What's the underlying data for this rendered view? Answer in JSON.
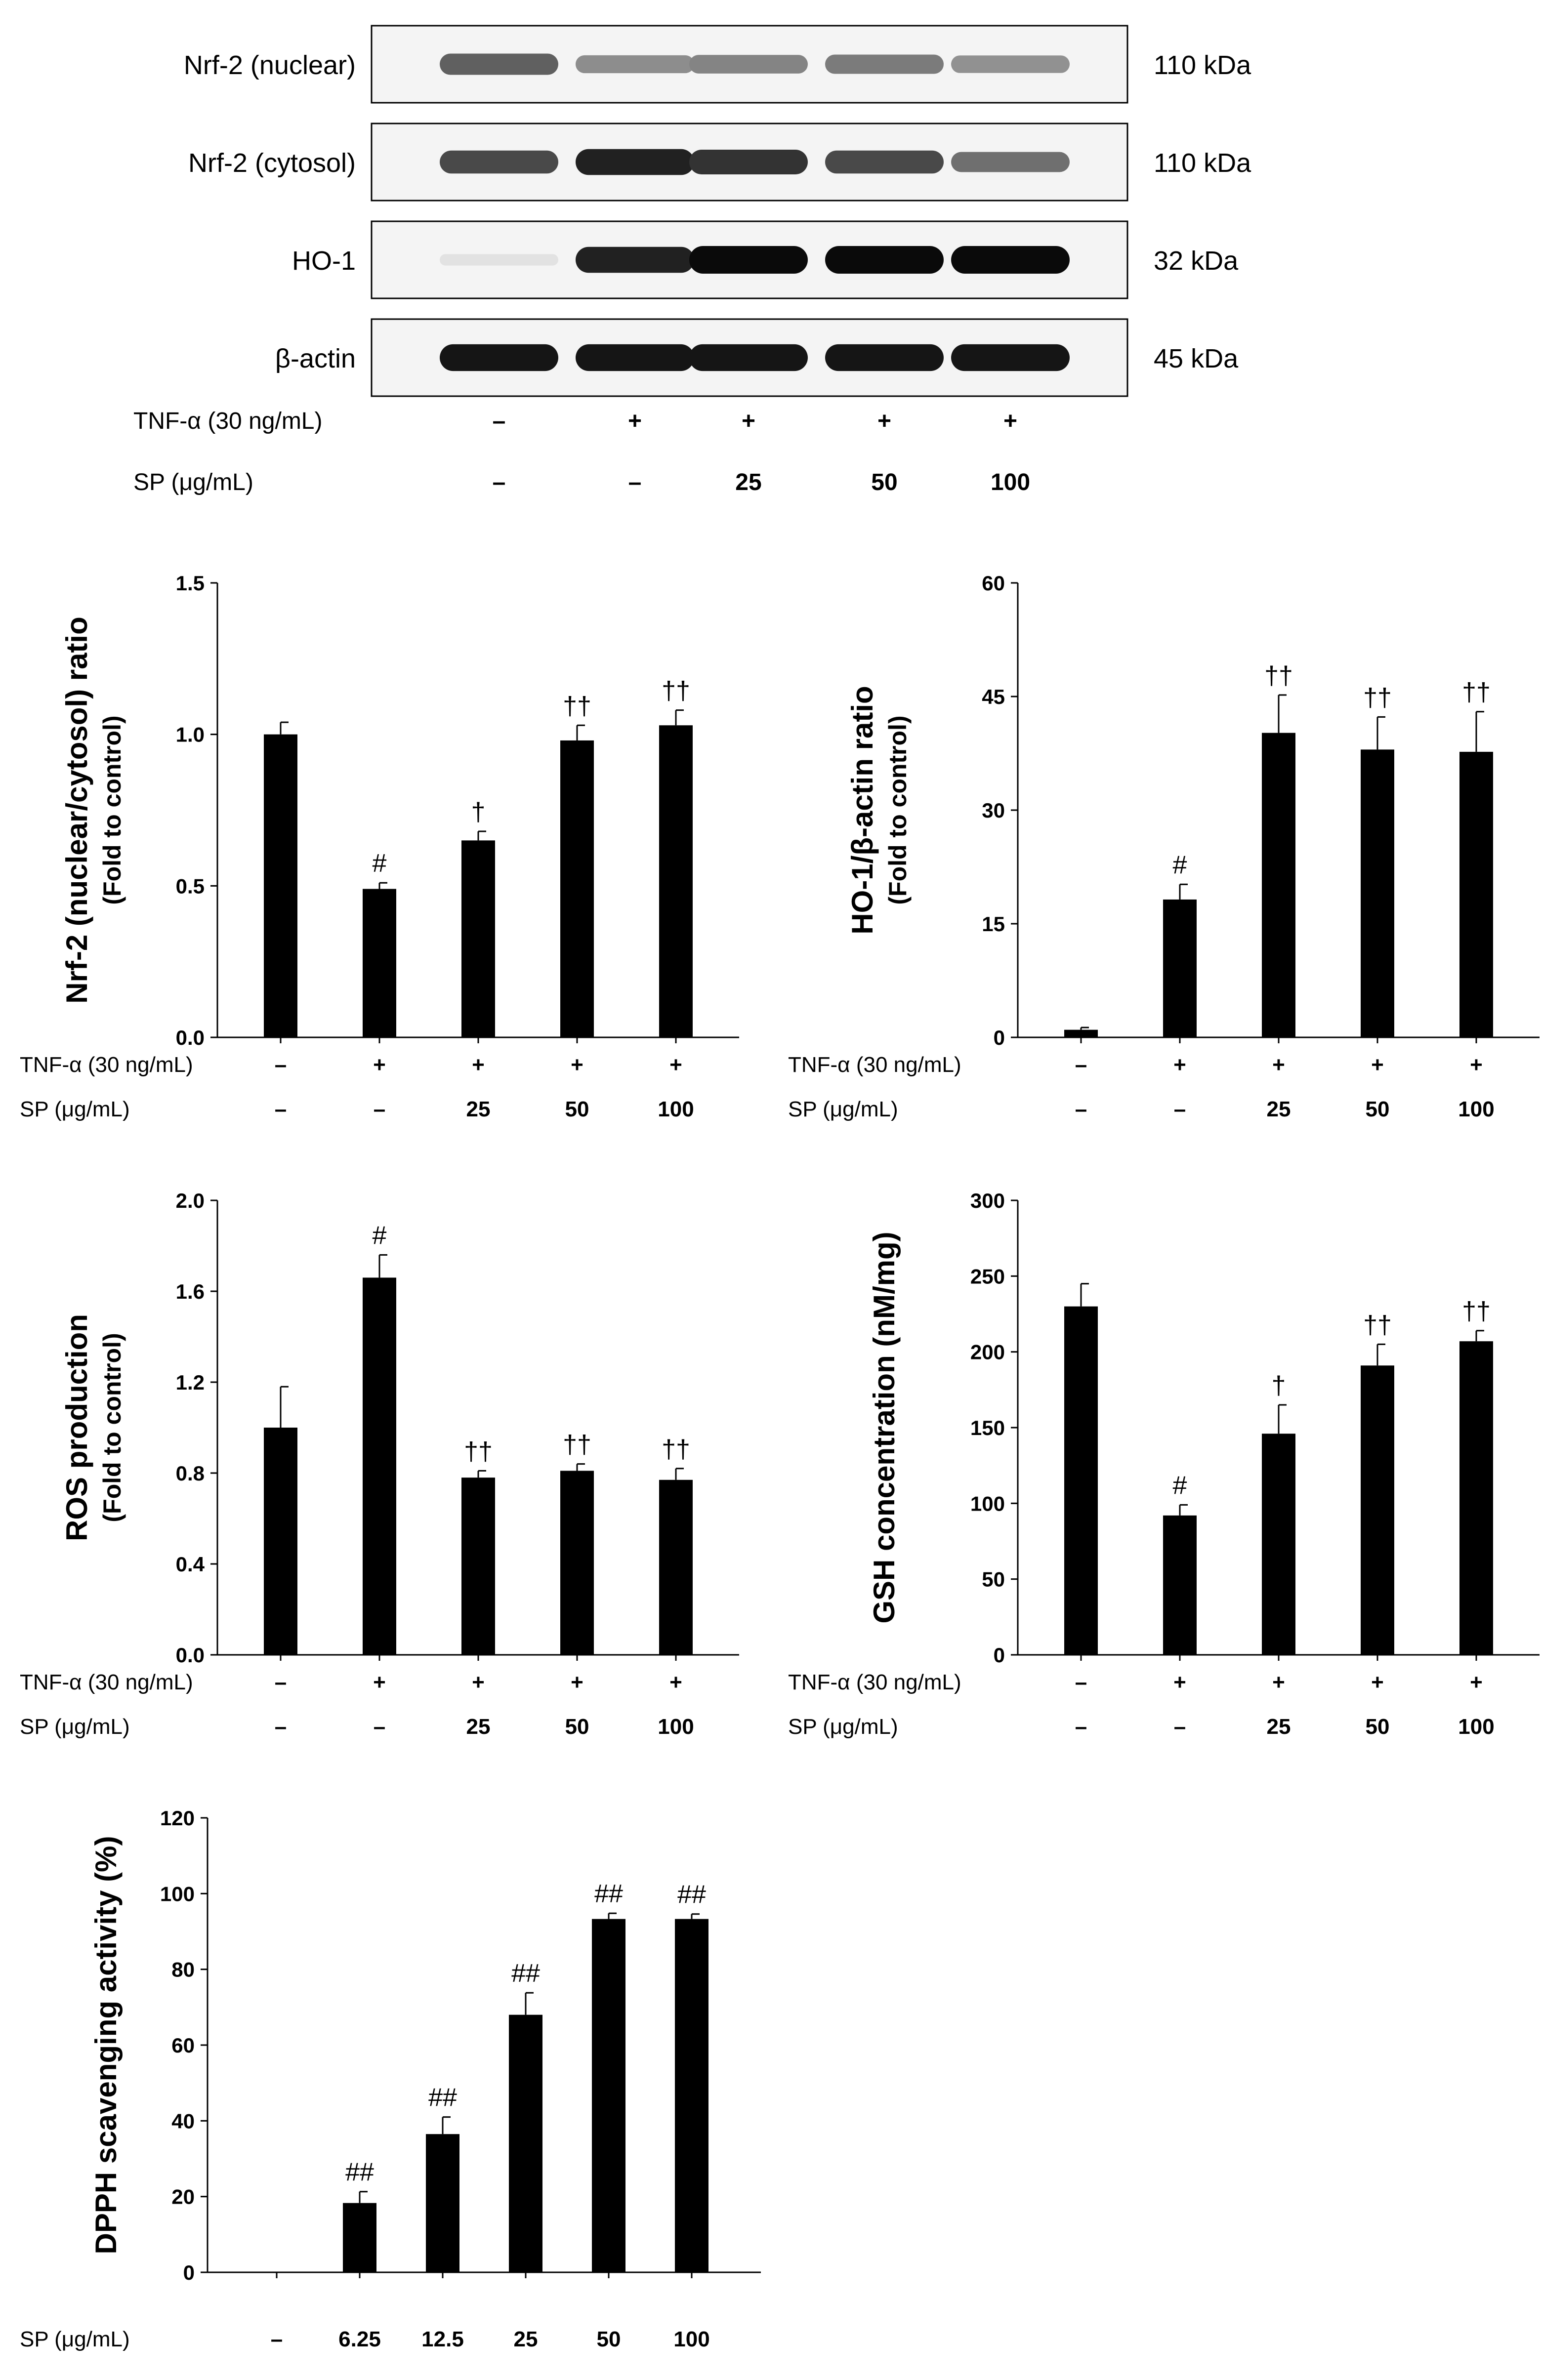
{
  "western_blot": {
    "bands": [
      {
        "label": "Nrf-2 (nuclear)",
        "size": "110 kDa",
        "intensities": [
          0.62,
          0.42,
          0.46,
          0.5,
          0.4
        ]
      },
      {
        "label": "Nrf-2 (cytosol)",
        "size": "110 kDa",
        "intensities": [
          0.72,
          0.9,
          0.82,
          0.72,
          0.55
        ]
      },
      {
        "label": "HO-1",
        "size": "32 kDa",
        "intensities": [
          0.04,
          0.9,
          1.0,
          1.0,
          1.0
        ]
      },
      {
        "label": "β-actin",
        "size": "45 kDa",
        "intensities": [
          0.95,
          0.95,
          0.95,
          0.95,
          0.95
        ]
      }
    ],
    "treatment_rows": [
      {
        "label": "TNF-α (30 ng/mL)",
        "values": [
          "–",
          "+",
          "+",
          "+",
          "+"
        ]
      },
      {
        "label": "SP (μg/mL)",
        "values": [
          "–",
          "–",
          "25",
          "50",
          "100"
        ]
      }
    ]
  },
  "chart_data": [
    {
      "type": "bar",
      "ylabel": "Nrf-2 (nuclear/cytosol) ratio",
      "ylabel2": "(Fold to control)",
      "ylim": [
        0,
        1.5
      ],
      "yticks": [
        "0.0",
        "0.5",
        "1.0",
        "1.5"
      ],
      "values": [
        1.0,
        0.49,
        0.65,
        0.98,
        1.03
      ],
      "errors": [
        0.04,
        0.02,
        0.03,
        0.05,
        0.05
      ],
      "annotations": [
        "",
        "#",
        "†",
        "††",
        "††"
      ],
      "rows": [
        {
          "label": "TNF-α (30 ng/mL)",
          "values": [
            "–",
            "+",
            "+",
            "+",
            "+"
          ]
        },
        {
          "label": "SP (μg/mL)",
          "values": [
            "–",
            "–",
            "25",
            "50",
            "100"
          ]
        }
      ]
    },
    {
      "type": "bar",
      "ylabel": "HO-1/β-actin ratio",
      "ylabel2": "(Fold to control)",
      "ylim": [
        0,
        60
      ],
      "yticks": [
        "0",
        "15",
        "30",
        "45",
        "60"
      ],
      "values": [
        1.0,
        18.2,
        40.2,
        38.0,
        37.7
      ],
      "errors": [
        0.3,
        2.0,
        5.0,
        4.3,
        5.3
      ],
      "annotations": [
        "",
        "#",
        "††",
        "††",
        "††"
      ],
      "rows": [
        {
          "label": "TNF-α (30 ng/mL)",
          "values": [
            "–",
            "+",
            "+",
            "+",
            "+"
          ]
        },
        {
          "label": "SP (μg/mL)",
          "values": [
            "–",
            "–",
            "25",
            "50",
            "100"
          ]
        }
      ]
    },
    {
      "type": "bar",
      "ylabel": "ROS production",
      "ylabel2": "(Fold to control)",
      "ylim": [
        0,
        2.0
      ],
      "yticks": [
        "0.0",
        "0.4",
        "0.8",
        "1.2",
        "1.6",
        "2.0"
      ],
      "values": [
        1.0,
        1.66,
        0.78,
        0.81,
        0.77
      ],
      "errors": [
        0.18,
        0.1,
        0.03,
        0.03,
        0.05
      ],
      "annotations": [
        "",
        "#",
        "††",
        "††",
        "††"
      ],
      "rows": [
        {
          "label": "TNF-α (30 ng/mL)",
          "values": [
            "–",
            "+",
            "+",
            "+",
            "+"
          ]
        },
        {
          "label": "SP (μg/mL)",
          "values": [
            "–",
            "–",
            "25",
            "50",
            "100"
          ]
        }
      ]
    },
    {
      "type": "bar",
      "ylabel": "GSH concentration (nM/mg)",
      "ylabel2": "",
      "ylim": [
        0,
        300
      ],
      "yticks": [
        "0",
        "50",
        "100",
        "150",
        "200",
        "250",
        "300"
      ],
      "values": [
        230,
        92,
        146,
        191,
        207
      ],
      "errors": [
        15,
        7,
        19,
        14,
        7
      ],
      "annotations": [
        "",
        "#",
        "†",
        "††",
        "††"
      ],
      "rows": [
        {
          "label": "TNF-α (30 ng/mL)",
          "values": [
            "–",
            "+",
            "+",
            "+",
            "+"
          ]
        },
        {
          "label": "SP (μg/mL)",
          "values": [
            "–",
            "–",
            "25",
            "50",
            "100"
          ]
        }
      ]
    },
    {
      "type": "bar",
      "ylabel": "DPPH scavenging activity (%)",
      "ylabel2": "",
      "ylim": [
        0,
        120
      ],
      "yticks": [
        "0",
        "20",
        "40",
        "60",
        "80",
        "100",
        "120"
      ],
      "values": [
        0,
        18.3,
        36.5,
        68.0,
        93.3,
        93.3
      ],
      "errors": [
        0,
        3.0,
        4.5,
        5.8,
        1.5,
        1.3
      ],
      "annotations": [
        "",
        "##",
        "##",
        "##",
        "##",
        "##"
      ],
      "rows": [
        {
          "label": "SP (μg/mL)",
          "values": [
            "–",
            "6.25",
            "12.5",
            "25",
            "50",
            "100"
          ]
        }
      ]
    }
  ]
}
